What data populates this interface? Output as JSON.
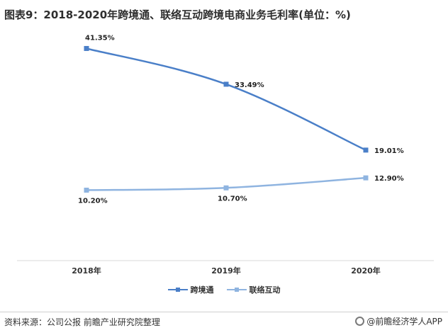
{
  "title": "图表9：2018-2020年跨境通、联络互动跨境电商业务毛利率(单位：%)",
  "source": "资料来源：公司公报 前瞻产业研究院整理",
  "app_label": "@前瞻经济学人APP",
  "colors": {
    "series_1": "#4a7fc8",
    "series_2": "#8fb4e0"
  },
  "chart_data": {
    "type": "line",
    "title": "图表9：2018-2020年跨境通、联络互动跨境电商业务毛利率(单位：%)",
    "categories": [
      "2018年",
      "2019年",
      "2020年"
    ],
    "unit": "%",
    "ylim": [
      0,
      45
    ],
    "grid": false,
    "legend_position": "bottom",
    "series": [
      {
        "name": "跨境通",
        "values": [
          41.35,
          33.49,
          19.01
        ],
        "labels": [
          "41.35%",
          "33.49%",
          "19.01%"
        ]
      },
      {
        "name": "联络互动",
        "values": [
          10.2,
          10.7,
          12.9
        ],
        "labels": [
          "10.20%",
          "10.70%",
          "12.90%"
        ]
      }
    ]
  }
}
